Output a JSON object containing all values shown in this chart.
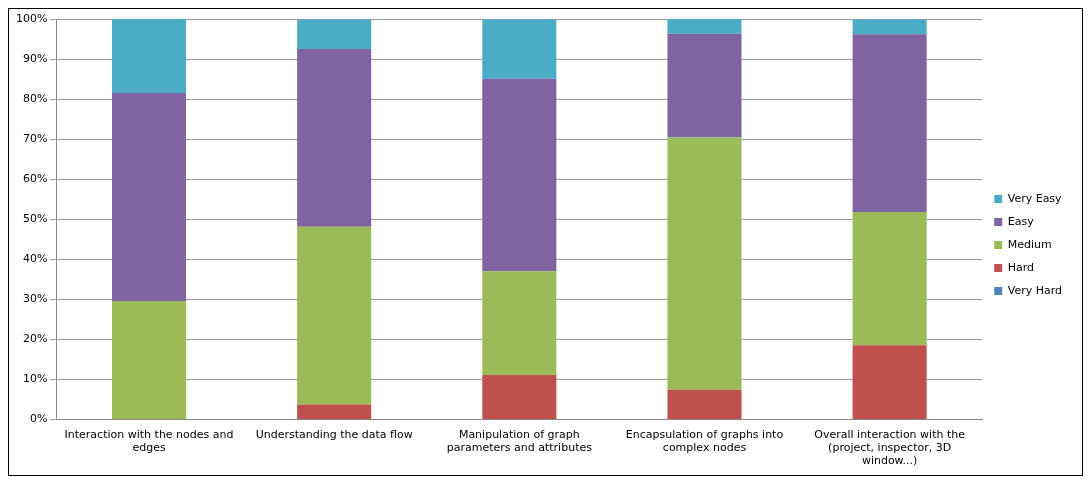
{
  "chart_data": {
    "type": "bar",
    "stacked": true,
    "categories": [
      "Interaction with the nodes and edges",
      "Understanding the data flow",
      "Manipulation of graph parameters and attributes",
      "Encapsulation of graphs into complex nodes",
      "Overall interaction with the (project, inspector, 3D window...)"
    ],
    "series": [
      {
        "name": "Very Hard",
        "color": "#4f81bd",
        "values": [
          0,
          0,
          0,
          0,
          0
        ]
      },
      {
        "name": "Hard",
        "color": "#c0504d",
        "values": [
          0,
          3.7,
          11.1,
          7.4,
          18.5
        ]
      },
      {
        "name": "Medium",
        "color": "#9bbb59",
        "values": [
          29.6,
          44.4,
          25.9,
          63.0,
          33.3
        ]
      },
      {
        "name": "Easy",
        "color": "#8064a2",
        "values": [
          51.9,
          44.4,
          48.1,
          25.9,
          44.4
        ]
      },
      {
        "name": "Very Easy",
        "color": "#4bacc6",
        "values": [
          18.5,
          7.4,
          14.8,
          3.7,
          3.7
        ]
      }
    ],
    "ylim": [
      0,
      100
    ],
    "yticks": [
      {
        "value": 0,
        "label": "0%"
      },
      {
        "value": 10,
        "label": "10%"
      },
      {
        "value": 20,
        "label": "20%"
      },
      {
        "value": 30,
        "label": "30%"
      },
      {
        "value": 40,
        "label": "40%"
      },
      {
        "value": 50,
        "label": "50%"
      },
      {
        "value": 60,
        "label": "60%"
      },
      {
        "value": 70,
        "label": "70%"
      },
      {
        "value": 80,
        "label": "80%"
      },
      {
        "value": 90,
        "label": "90%"
      },
      {
        "value": 100,
        "label": "100%"
      }
    ],
    "grid": "y",
    "legend": "right"
  }
}
